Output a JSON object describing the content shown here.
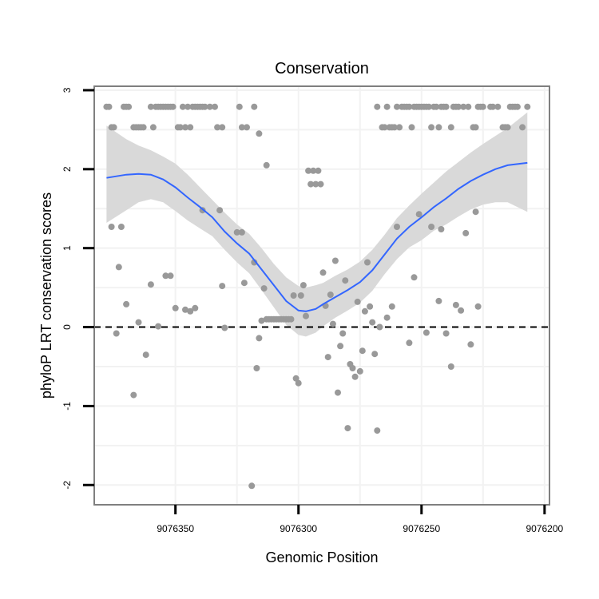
{
  "chart_data": {
    "type": "scatter",
    "title": "Conservation",
    "xlabel": "Genomic Position",
    "ylabel": "phyloP LRT conservation scores",
    "x_reversed": true,
    "xlim": [
      9076383,
      9076198
    ],
    "ylim": [
      -2.25,
      3.05
    ],
    "xticks": [
      9076350,
      9076300,
      9076250,
      9076200
    ],
    "xtick_labels": [
      "9076350",
      "9076300",
      "9076250",
      "9076200"
    ],
    "yticks": [
      -2,
      -1,
      0,
      1,
      2,
      3
    ],
    "ytick_labels": [
      "-2",
      "-1",
      "0",
      "1",
      "2",
      "3"
    ],
    "grid": true,
    "reference_line": {
      "y": 0,
      "style": "dashed",
      "color": "#000000"
    },
    "colors": {
      "points": "#999999",
      "smooth": "#3366ff",
      "ribbon": "#d9d9d9",
      "panel_border": "#7f7f7f",
      "grid": "#f2f2f2"
    },
    "series": [
      {
        "name": "phyloP scores",
        "type": "scatter",
        "points": [
          [
            9076378,
            2.79
          ],
          [
            9076377,
            2.79
          ],
          [
            9076376,
            2.53
          ],
          [
            9076375,
            2.53
          ],
          [
            9076371,
            2.79
          ],
          [
            9076370,
            2.79
          ],
          [
            9076369,
            2.79
          ],
          [
            9076367,
            2.53
          ],
          [
            9076366,
            2.53
          ],
          [
            9076365,
            2.53
          ],
          [
            9076364,
            2.53
          ],
          [
            9076363,
            2.53
          ],
          [
            9076360,
            2.79
          ],
          [
            9076359,
            2.53
          ],
          [
            9076358,
            2.79
          ],
          [
            9076357,
            2.79
          ],
          [
            9076356,
            2.79
          ],
          [
            9076355,
            2.79
          ],
          [
            9076354,
            2.79
          ],
          [
            9076353,
            2.79
          ],
          [
            9076352,
            2.79
          ],
          [
            9076351,
            2.79
          ],
          [
            9076349,
            2.53
          ],
          [
            9076348,
            2.53
          ],
          [
            9076346,
            2.53
          ],
          [
            9076347,
            2.79
          ],
          [
            9076345,
            2.79
          ],
          [
            9076344,
            2.53
          ],
          [
            9076343,
            2.79
          ],
          [
            9076342,
            2.79
          ],
          [
            9076341,
            2.79
          ],
          [
            9076340,
            2.79
          ],
          [
            9076339,
            2.79
          ],
          [
            9076338,
            2.79
          ],
          [
            9076336,
            2.79
          ],
          [
            9076334,
            2.79
          ],
          [
            9076333,
            2.53
          ],
          [
            9076331,
            2.53
          ],
          [
            9076324,
            2.79
          ],
          [
            9076323,
            2.53
          ],
          [
            9076321,
            2.53
          ],
          [
            9076318,
            2.79
          ],
          [
            9076316,
            2.45
          ],
          [
            9076313,
            2.05
          ],
          [
            9076376,
            1.27
          ],
          [
            9076372,
            1.27
          ],
          [
            9076373,
            0.76
          ],
          [
            9076370,
            0.29
          ],
          [
            9076374,
            -0.08
          ],
          [
            9076367,
            -0.86
          ],
          [
            9076365,
            0.06
          ],
          [
            9076362,
            -0.35
          ],
          [
            9076360,
            0.54
          ],
          [
            9076357,
            0.01
          ],
          [
            9076354,
            0.65
          ],
          [
            9076352,
            0.65
          ],
          [
            9076350,
            0.24
          ],
          [
            9076346,
            0.22
          ],
          [
            9076344,
            0.2
          ],
          [
            9076342,
            0.24
          ],
          [
            9076339,
            1.48
          ],
          [
            9076332,
            1.48
          ],
          [
            9076331,
            0.52
          ],
          [
            9076330,
            -0.01
          ],
          [
            9076325,
            1.2
          ],
          [
            9076323,
            1.2
          ],
          [
            9076322,
            0.56
          ],
          [
            9076319,
            -2.01
          ],
          [
            9076318,
            0.82
          ],
          [
            9076317,
            -0.52
          ],
          [
            9076316,
            -0.14
          ],
          [
            9076315,
            0.08
          ],
          [
            9076314,
            0.49
          ],
          [
            9076313,
            0.1
          ],
          [
            9076312,
            0.1
          ],
          [
            9076311,
            0.1
          ],
          [
            9076310,
            0.1
          ],
          [
            9076309,
            0.1
          ],
          [
            9076308,
            0.1
          ],
          [
            9076307,
            0.1
          ],
          [
            9076306,
            0.1
          ],
          [
            9076305,
            0.1
          ],
          [
            9076304,
            0.1
          ],
          [
            9076303,
            0.1
          ],
          [
            9076302,
            0.4
          ],
          [
            9076301,
            -0.65
          ],
          [
            9076300,
            -0.71
          ],
          [
            9076299,
            0.4
          ],
          [
            9076298,
            0.53
          ],
          [
            9076297,
            0.14
          ],
          [
            9076296,
            1.98
          ],
          [
            9076295,
            1.81
          ],
          [
            9076294,
            1.98
          ],
          [
            9076293,
            1.81
          ],
          [
            9076292,
            1.98
          ],
          [
            9076291,
            1.81
          ],
          [
            9076290,
            0.69
          ],
          [
            9076289,
            0.27
          ],
          [
            9076288,
            -0.38
          ],
          [
            9076287,
            0.41
          ],
          [
            9076286,
            0.04
          ],
          [
            9076285,
            0.84
          ],
          [
            9076284,
            -0.83
          ],
          [
            9076283,
            -0.24
          ],
          [
            9076282,
            -0.08
          ],
          [
            9076281,
            0.59
          ],
          [
            9076280,
            -1.28
          ],
          [
            9076279,
            -0.47
          ],
          [
            9076278,
            -0.52
          ],
          [
            9076277,
            -0.63
          ],
          [
            9076276,
            0.32
          ],
          [
            9076275,
            -0.56
          ],
          [
            9076274,
            -0.3
          ],
          [
            9076273,
            0.2
          ],
          [
            9076272,
            0.82
          ],
          [
            9076271,
            0.26
          ],
          [
            9076270,
            0.06
          ],
          [
            9076269,
            -0.34
          ],
          [
            9076268,
            -1.31
          ],
          [
            9076267,
            0.0
          ],
          [
            9076264,
            0.12
          ],
          [
            9076262,
            0.26
          ],
          [
            9076260,
            1.27
          ],
          [
            9076255,
            -0.2
          ],
          [
            9076253,
            0.63
          ],
          [
            9076251,
            1.43
          ],
          [
            9076248,
            -0.07
          ],
          [
            9076246,
            1.27
          ],
          [
            9076243,
            0.33
          ],
          [
            9076242,
            1.24
          ],
          [
            9076240,
            -0.08
          ],
          [
            9076238,
            -0.5
          ],
          [
            9076236,
            0.28
          ],
          [
            9076234,
            0.21
          ],
          [
            9076232,
            1.19
          ],
          [
            9076230,
            -0.22
          ],
          [
            9076228,
            1.46
          ],
          [
            9076227,
            0.26
          ],
          [
            9076268,
            2.79
          ],
          [
            9076266,
            2.53
          ],
          [
            9076265,
            2.53
          ],
          [
            9076264,
            2.79
          ],
          [
            9076263,
            2.53
          ],
          [
            9076262,
            2.53
          ],
          [
            9076261,
            2.53
          ],
          [
            9076260,
            2.79
          ],
          [
            9076259,
            2.53
          ],
          [
            9076258,
            2.79
          ],
          [
            9076257,
            2.79
          ],
          [
            9076256,
            2.79
          ],
          [
            9076255,
            2.79
          ],
          [
            9076254,
            2.53
          ],
          [
            9076253,
            2.79
          ],
          [
            9076252,
            2.79
          ],
          [
            9076251,
            2.79
          ],
          [
            9076250,
            2.79
          ],
          [
            9076249,
            2.79
          ],
          [
            9076248,
            2.79
          ],
          [
            9076247,
            2.79
          ],
          [
            9076246,
            2.53
          ],
          [
            9076245,
            2.79
          ],
          [
            9076244,
            2.79
          ],
          [
            9076243,
            2.53
          ],
          [
            9076242,
            2.79
          ],
          [
            9076241,
            2.79
          ],
          [
            9076240,
            2.79
          ],
          [
            9076238,
            2.53
          ],
          [
            9076237,
            2.79
          ],
          [
            9076236,
            2.79
          ],
          [
            9076235,
            2.79
          ],
          [
            9076233,
            2.79
          ],
          [
            9076231,
            2.79
          ],
          [
            9076229,
            2.53
          ],
          [
            9076228,
            2.53
          ],
          [
            9076227,
            2.79
          ],
          [
            9076226,
            2.79
          ],
          [
            9076225,
            2.79
          ],
          [
            9076222,
            2.79
          ],
          [
            9076221,
            2.79
          ],
          [
            9076219,
            2.79
          ],
          [
            9076217,
            2.53
          ],
          [
            9076216,
            2.53
          ],
          [
            9076215,
            2.53
          ],
          [
            9076214,
            2.79
          ],
          [
            9076213,
            2.79
          ],
          [
            9076212,
            2.79
          ],
          [
            9076211,
            2.79
          ],
          [
            9076209,
            2.53
          ],
          [
            9076207,
            2.79
          ]
        ]
      },
      {
        "name": "loess fit",
        "type": "line",
        "points": [
          [
            9076378,
            1.89
          ],
          [
            9076370,
            1.93
          ],
          [
            9076365,
            1.94
          ],
          [
            9076360,
            1.93
          ],
          [
            9076355,
            1.87
          ],
          [
            9076350,
            1.77
          ],
          [
            9076345,
            1.64
          ],
          [
            9076340,
            1.52
          ],
          [
            9076335,
            1.39
          ],
          [
            9076330,
            1.21
          ],
          [
            9076325,
            1.06
          ],
          [
            9076320,
            0.93
          ],
          [
            9076315,
            0.73
          ],
          [
            9076310,
            0.53
          ],
          [
            9076305,
            0.33
          ],
          [
            9076300,
            0.21
          ],
          [
            9076297,
            0.2
          ],
          [
            9076293,
            0.23
          ],
          [
            9076290,
            0.29
          ],
          [
            9076285,
            0.38
          ],
          [
            9076280,
            0.47
          ],
          [
            9076275,
            0.57
          ],
          [
            9076270,
            0.72
          ],
          [
            9076265,
            0.92
          ],
          [
            9076260,
            1.12
          ],
          [
            9076255,
            1.27
          ],
          [
            9076250,
            1.39
          ],
          [
            9076245,
            1.52
          ],
          [
            9076240,
            1.63
          ],
          [
            9076235,
            1.75
          ],
          [
            9076230,
            1.85
          ],
          [
            9076225,
            1.93
          ],
          [
            9076220,
            2.0
          ],
          [
            9076215,
            2.05
          ],
          [
            9076207,
            2.08
          ]
        ]
      },
      {
        "name": "confidence band upper",
        "type": "area-upper",
        "points": [
          [
            9076378,
            2.55
          ],
          [
            9076370,
            2.38
          ],
          [
            9076365,
            2.3
          ],
          [
            9076360,
            2.24
          ],
          [
            9076355,
            2.16
          ],
          [
            9076350,
            2.07
          ],
          [
            9076345,
            1.93
          ],
          [
            9076340,
            1.77
          ],
          [
            9076335,
            1.61
          ],
          [
            9076330,
            1.45
          ],
          [
            9076325,
            1.3
          ],
          [
            9076320,
            1.18
          ],
          [
            9076315,
            1.0
          ],
          [
            9076310,
            0.8
          ],
          [
            9076305,
            0.63
          ],
          [
            9076300,
            0.52
          ],
          [
            9076297,
            0.5
          ],
          [
            9076293,
            0.53
          ],
          [
            9076290,
            0.56
          ],
          [
            9076285,
            0.65
          ],
          [
            9076280,
            0.73
          ],
          [
            9076275,
            0.83
          ],
          [
            9076270,
            0.98
          ],
          [
            9076265,
            1.17
          ],
          [
            9076260,
            1.38
          ],
          [
            9076255,
            1.54
          ],
          [
            9076250,
            1.69
          ],
          [
            9076245,
            1.83
          ],
          [
            9076240,
            1.97
          ],
          [
            9076235,
            2.09
          ],
          [
            9076230,
            2.21
          ],
          [
            9076225,
            2.32
          ],
          [
            9076220,
            2.42
          ],
          [
            9076215,
            2.52
          ],
          [
            9076207,
            2.72
          ]
        ]
      },
      {
        "name": "confidence band lower",
        "type": "area-lower",
        "points": [
          [
            9076378,
            1.32
          ],
          [
            9076370,
            1.48
          ],
          [
            9076365,
            1.58
          ],
          [
            9076360,
            1.62
          ],
          [
            9076355,
            1.58
          ],
          [
            9076350,
            1.47
          ],
          [
            9076345,
            1.35
          ],
          [
            9076340,
            1.25
          ],
          [
            9076335,
            1.15
          ],
          [
            9076330,
            0.98
          ],
          [
            9076325,
            0.82
          ],
          [
            9076320,
            0.68
          ],
          [
            9076315,
            0.47
          ],
          [
            9076310,
            0.25
          ],
          [
            9076305,
            0.03
          ],
          [
            9076300,
            -0.1
          ],
          [
            9076297,
            -0.12
          ],
          [
            9076293,
            -0.07
          ],
          [
            9076290,
            0.01
          ],
          [
            9076285,
            0.12
          ],
          [
            9076280,
            0.21
          ],
          [
            9076275,
            0.31
          ],
          [
            9076270,
            0.46
          ],
          [
            9076265,
            0.67
          ],
          [
            9076260,
            0.86
          ],
          [
            9076255,
            1.01
          ],
          [
            9076250,
            1.1
          ],
          [
            9076245,
            1.22
          ],
          [
            9076240,
            1.3
          ],
          [
            9076235,
            1.4
          ],
          [
            9076230,
            1.49
          ],
          [
            9076225,
            1.55
          ],
          [
            9076220,
            1.58
          ],
          [
            9076215,
            1.58
          ],
          [
            9076207,
            1.46
          ]
        ]
      }
    ]
  }
}
